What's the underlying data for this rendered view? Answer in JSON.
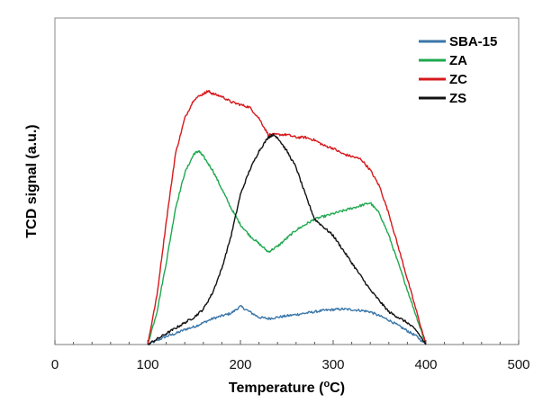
{
  "chart_data": {
    "type": "line",
    "title": "",
    "xlabel": "Temperature (",
    "xlabel_sup": "o",
    "xlabel_unit": "C)",
    "ylabel": "TCD signal (a.u.)",
    "xlim": [
      0,
      500
    ],
    "ylim": [
      0,
      100
    ],
    "xticks": [
      0,
      100,
      200,
      300,
      400,
      500
    ],
    "xtick_labels": [
      "0",
      "100",
      "200",
      "300",
      "400",
      "500"
    ],
    "grid": false,
    "legend_position": "top-right",
    "series": [
      {
        "name": "SBA-15",
        "color": "#3a76a8",
        "x": [
          100,
          110,
          120,
          130,
          140,
          150,
          160,
          170,
          180,
          190,
          200,
          210,
          220,
          230,
          240,
          250,
          260,
          270,
          280,
          290,
          300,
          310,
          320,
          330,
          340,
          350,
          360,
          370,
          380,
          390,
          400
        ],
        "y": [
          0,
          1.5,
          3,
          4,
          5.5,
          6.5,
          8,
          9.5,
          10.5,
          11.5,
          14,
          12,
          10,
          9.5,
          10,
          10.5,
          11,
          11.5,
          12,
          12.5,
          12.8,
          13,
          12.8,
          12.5,
          12,
          10.5,
          9,
          7,
          5,
          3,
          0
        ]
      },
      {
        "name": "ZA",
        "color": "#1fa84f",
        "x": [
          100,
          110,
          120,
          130,
          140,
          150,
          155,
          160,
          170,
          180,
          190,
          200,
          210,
          220,
          230,
          240,
          250,
          260,
          270,
          280,
          290,
          300,
          310,
          320,
          330,
          340,
          350,
          360,
          370,
          380,
          390,
          400
        ],
        "y": [
          0,
          12,
          30,
          50,
          63,
          70,
          71,
          69,
          64,
          57,
          50,
          44,
          40,
          37,
          34,
          36,
          39,
          42,
          44,
          46,
          47,
          48,
          49,
          50,
          51,
          52,
          48,
          40,
          30,
          20,
          10,
          0
        ]
      },
      {
        "name": "ZC",
        "color": "#d7191c",
        "x": [
          100,
          110,
          120,
          130,
          140,
          150,
          160,
          165,
          170,
          180,
          190,
          200,
          210,
          220,
          230,
          240,
          250,
          260,
          270,
          280,
          290,
          300,
          310,
          320,
          330,
          340,
          350,
          360,
          370,
          380,
          390,
          400
        ],
        "y": [
          0,
          18,
          45,
          70,
          83,
          90,
          92,
          93,
          92,
          91,
          89,
          88,
          87,
          83,
          77,
          77,
          77,
          76,
          76,
          75,
          73,
          72,
          70,
          69,
          68,
          64,
          58,
          48,
          36,
          24,
          12,
          0
        ]
      },
      {
        "name": "ZS",
        "color": "#111111",
        "x": [
          100,
          110,
          120,
          130,
          140,
          150,
          160,
          170,
          180,
          190,
          200,
          210,
          220,
          230,
          235,
          240,
          250,
          260,
          270,
          280,
          290,
          300,
          310,
          320,
          330,
          340,
          350,
          360,
          370,
          380,
          390,
          400
        ],
        "y": [
          0,
          2,
          4,
          6,
          8,
          10,
          13,
          19,
          28,
          40,
          55,
          64,
          71,
          76,
          77,
          76,
          71,
          65,
          55,
          46,
          43,
          40,
          35,
          30,
          25,
          20,
          16,
          12,
          10,
          8,
          5,
          0
        ]
      }
    ]
  }
}
